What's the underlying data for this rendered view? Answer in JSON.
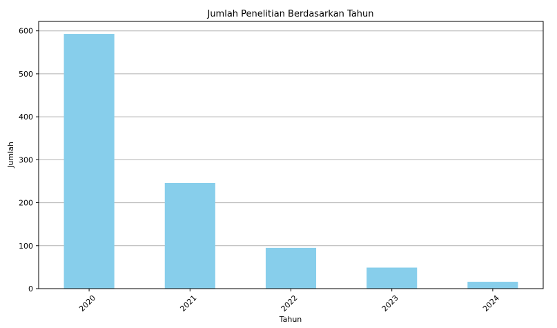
{
  "chart_data": {
    "type": "bar",
    "title": "Jumlah Penelitian Berdasarkan Tahun",
    "xlabel": "Tahun",
    "ylabel": "Jumlah",
    "categories": [
      "2020",
      "2021",
      "2022",
      "2023",
      "2024"
    ],
    "values": [
      593,
      246,
      95,
      49,
      16
    ],
    "ylim": [
      0,
      622
    ],
    "yticks": [
      0,
      100,
      200,
      300,
      400,
      500,
      600
    ],
    "grid": "y",
    "bar_color": "#87ceeb",
    "xtick_rotation": 45
  }
}
